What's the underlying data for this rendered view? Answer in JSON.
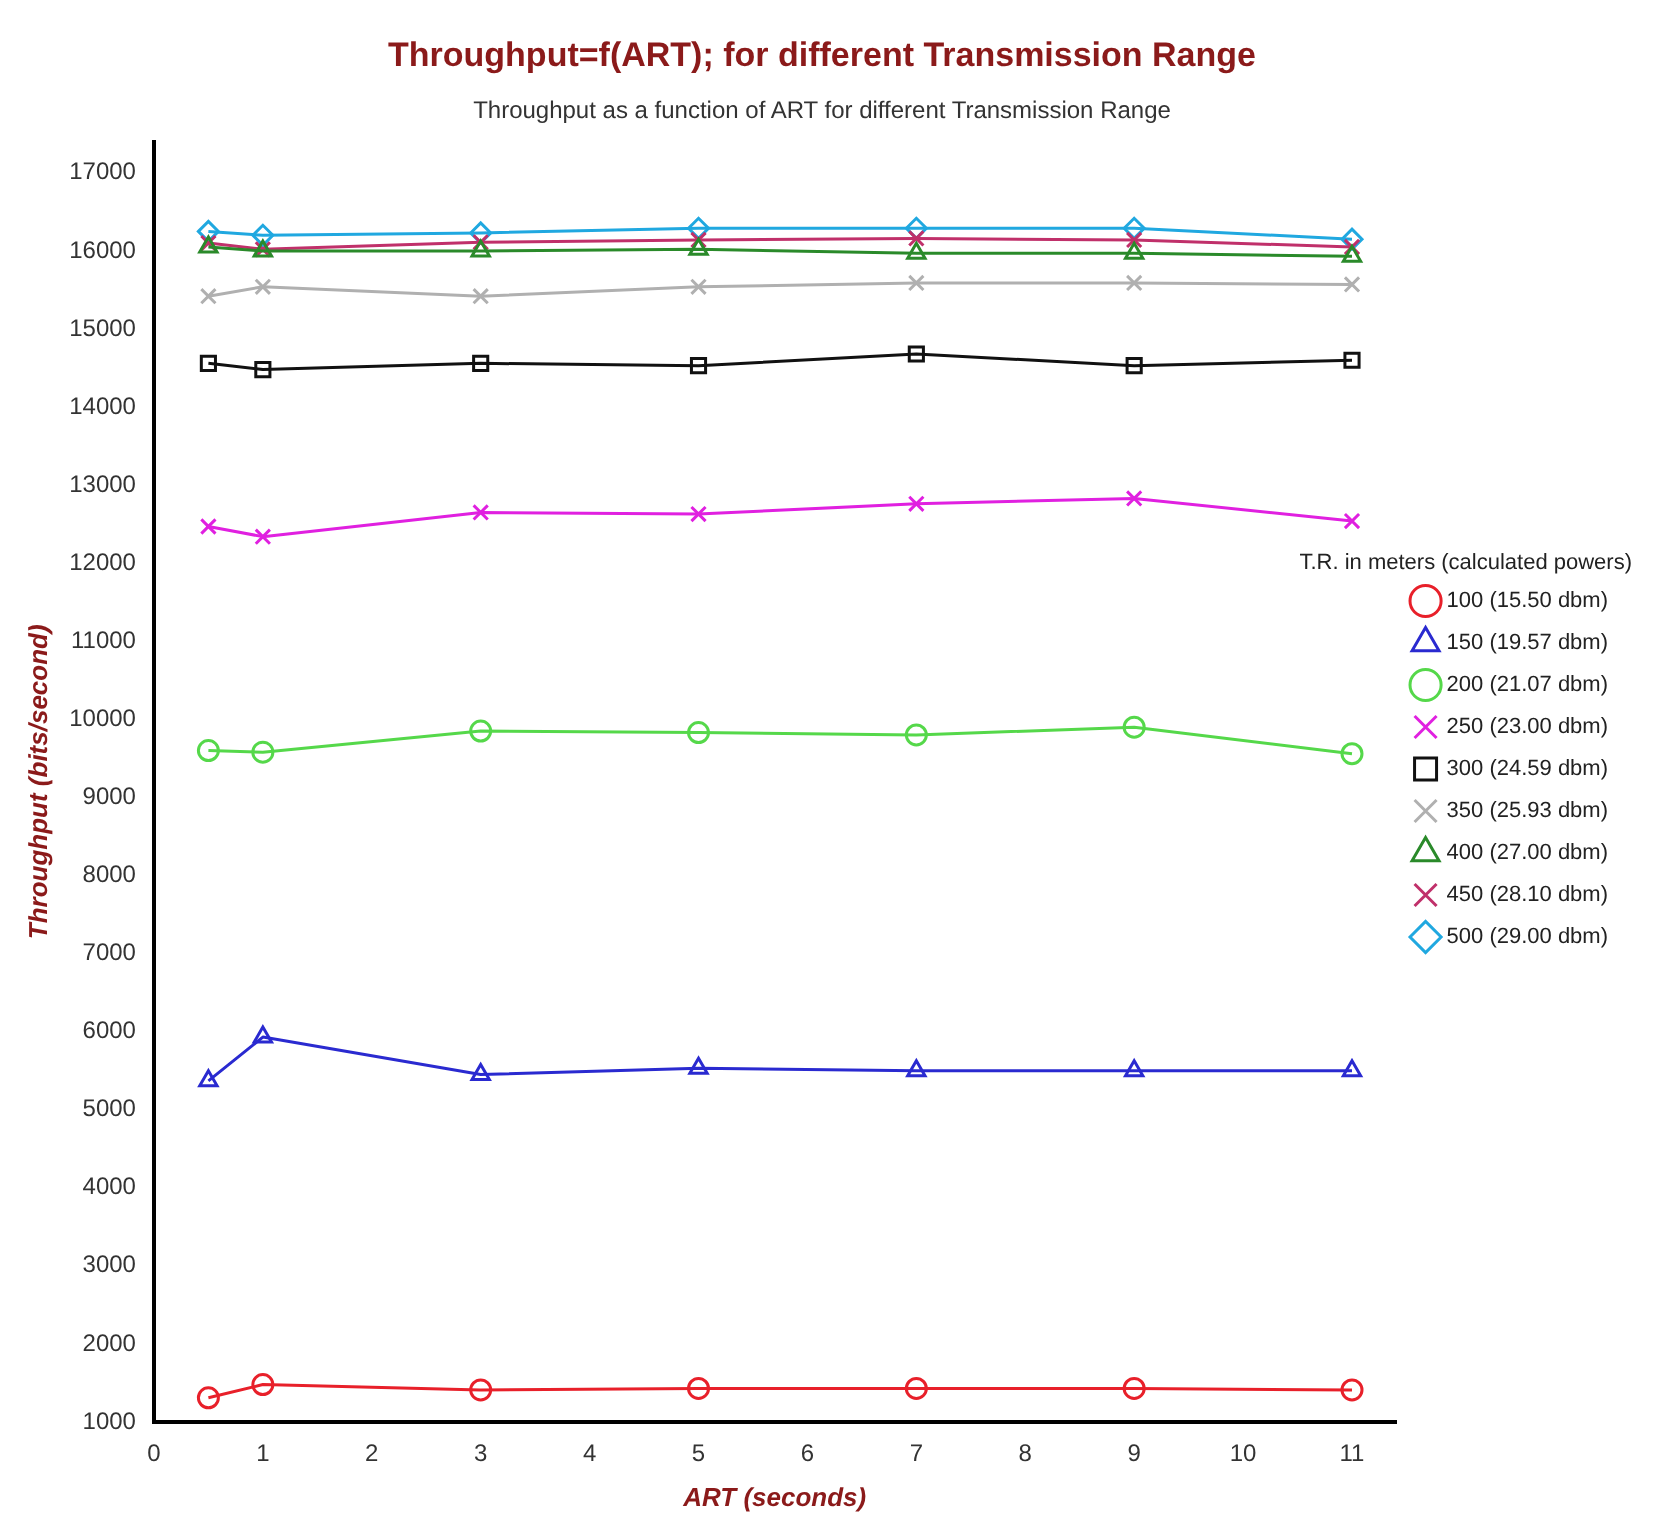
{
  "chart_data": {
    "type": "line",
    "title": "Throughput=f(ART); for different Transmission Range",
    "subtitle": "Throughput as a function of ART for different Transmission Range",
    "xlabel": "ART (seconds)",
    "ylabel": "Throughput (bits/second)",
    "legend_title": "T.R. in meters (calculated powers)",
    "x": [
      0.5,
      1,
      3,
      5,
      7,
      9,
      11
    ],
    "series": [
      {
        "name": "100 (15.50 dbm)",
        "color": "#e8202a",
        "marker": "circle",
        "values": [
          1310,
          1480,
          1410,
          1430,
          1430,
          1430,
          1410
        ]
      },
      {
        "name": "150 (19.57 dbm)",
        "color": "#2a2ad0",
        "marker": "triangle",
        "values": [
          5370,
          5930,
          5450,
          5530,
          5500,
          5500,
          5500
        ]
      },
      {
        "name": "200 (21.07 dbm)",
        "color": "#55d84a",
        "marker": "circle",
        "values": [
          9600,
          9580,
          9850,
          9830,
          9800,
          9900,
          9560
        ]
      },
      {
        "name": "250 (23.00 dbm)",
        "color": "#e020e0",
        "marker": "cross",
        "values": [
          12470,
          12340,
          12650,
          12630,
          12760,
          12830,
          12540
        ]
      },
      {
        "name": "300 (24.59 dbm)",
        "color": "#111111",
        "marker": "square",
        "values": [
          14560,
          14480,
          14560,
          14530,
          14680,
          14530,
          14600
        ]
      },
      {
        "name": "350 (25.93 dbm)",
        "color": "#b0b0b0",
        "marker": "cross",
        "values": [
          15420,
          15540,
          15420,
          15540,
          15590,
          15590,
          15570
        ]
      },
      {
        "name": "400 (27.00 dbm)",
        "color": "#2a8a2a",
        "marker": "triangle",
        "values": [
          16050,
          16000,
          16000,
          16020,
          15970,
          15970,
          15930
        ]
      },
      {
        "name": "450 (28.10 dbm)",
        "color": "#c0306a",
        "marker": "cross",
        "values": [
          16100,
          16020,
          16110,
          16140,
          16160,
          16140,
          16050
        ]
      },
      {
        "name": "500 (29.00 dbm)",
        "color": "#20a8e0",
        "marker": "diamond",
        "values": [
          16250,
          16200,
          16230,
          16290,
          16290,
          16290,
          16150
        ]
      }
    ],
    "xlim": [
      0,
      11.4
    ],
    "xticks": [
      0,
      1,
      2,
      3,
      4,
      5,
      6,
      7,
      8,
      9,
      10,
      11
    ],
    "ylim": [
      1000,
      17400
    ],
    "yticks": [
      1000,
      2000,
      3000,
      4000,
      5000,
      6000,
      7000,
      8000,
      9000,
      10000,
      11000,
      12000,
      13000,
      14000,
      15000,
      16000,
      17000
    ],
    "grid": false,
    "legend": "right",
    "line_style": "solid"
  }
}
